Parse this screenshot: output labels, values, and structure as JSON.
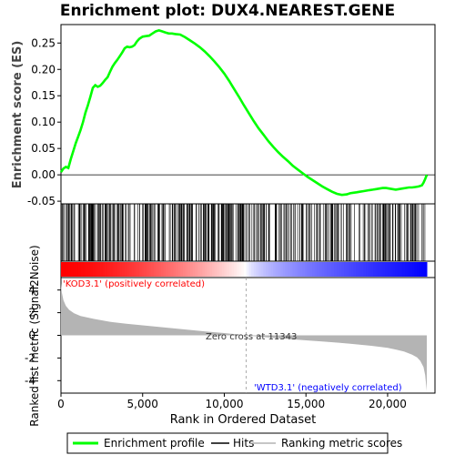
{
  "chart_data": {
    "type": "line",
    "title": "Enrichment plot: DUX4.NEAREST.GENE",
    "panels": {
      "enrichment": {
        "ylabel": "Enrichment score (ES)",
        "ylim": [
          -0.055,
          0.285
        ],
        "yticks": [
          -0.05,
          0.0,
          0.05,
          0.1,
          0.15,
          0.2,
          0.25
        ],
        "ytick_labels": [
          "-0.05",
          "0.00",
          "0.05",
          "0.10",
          "0.15",
          "0.20",
          "0.25"
        ],
        "series": [
          {
            "name": "Enrichment profile",
            "color": "#00ff00",
            "x": [
              0,
              150,
              300,
              450,
              600,
              750,
              900,
              1050,
              1200,
              1350,
              1500,
              1650,
              1800,
              1950,
              2100,
              2250,
              2400,
              2550,
              2700,
              2850,
              3000,
              3150,
              3300,
              3450,
              3600,
              3750,
              3900,
              4050,
              4200,
              4350,
              4500,
              4650,
              4800,
              5000,
              5200,
              5400,
              5600,
              5800,
              6000,
              6200,
              6400,
              6600,
              6800,
              7000,
              7300,
              7600,
              7900,
              8200,
              8500,
              8800,
              9100,
              9400,
              9700,
              10000,
              10300,
              10600,
              10900,
              11200,
              11500,
              11800,
              12100,
              12400,
              12700,
              13000,
              13300,
              13600,
              13900,
              14200,
              14500,
              14800,
              15100,
              15400,
              15700,
              16000,
              16300,
              16600,
              16900,
              17200,
              17500,
              17700,
              17900,
              18100,
              18300,
              18500,
              18700,
              18900,
              19100,
              19300,
              19500,
              19700,
              19900,
              20100,
              20300,
              20500,
              20700,
              20900,
              21100,
              21300,
              21500,
              21700,
              21900,
              22100,
              22200,
              22300,
              22400
            ],
            "y": [
              0.005,
              0.012,
              0.015,
              0.013,
              0.03,
              0.045,
              0.06,
              0.072,
              0.085,
              0.1,
              0.118,
              0.132,
              0.148,
              0.165,
              0.17,
              0.167,
              0.169,
              0.174,
              0.18,
              0.185,
              0.195,
              0.205,
              0.212,
              0.218,
              0.225,
              0.232,
              0.24,
              0.243,
              0.242,
              0.243,
              0.246,
              0.253,
              0.258,
              0.262,
              0.263,
              0.264,
              0.268,
              0.272,
              0.274,
              0.272,
              0.27,
              0.268,
              0.268,
              0.267,
              0.266,
              0.261,
              0.255,
              0.249,
              0.242,
              0.234,
              0.225,
              0.215,
              0.204,
              0.192,
              0.178,
              0.163,
              0.148,
              0.132,
              0.117,
              0.102,
              0.088,
              0.076,
              0.064,
              0.053,
              0.043,
              0.034,
              0.026,
              0.017,
              0.01,
              0.003,
              -0.004,
              -0.01,
              -0.016,
              -0.022,
              -0.027,
              -0.032,
              -0.036,
              -0.038,
              -0.037,
              -0.035,
              -0.034,
              -0.033,
              -0.032,
              -0.031,
              -0.03,
              -0.029,
              -0.028,
              -0.027,
              -0.026,
              -0.025,
              -0.025,
              -0.026,
              -0.027,
              -0.028,
              -0.027,
              -0.026,
              -0.025,
              -0.024,
              -0.024,
              -0.023,
              -0.022,
              -0.02,
              -0.015,
              -0.008,
              0.0
            ]
          }
        ]
      },
      "hits": {
        "series_name": "Hits",
        "color": "#000000",
        "count": 420,
        "range": [
          0,
          22400
        ]
      },
      "colorbar": {
        "pos_color": "#ff0000",
        "neg_color": "#0000ff",
        "mid_color": "#ffffff"
      },
      "ranking": {
        "series_name": "Ranking metric scores",
        "color": "#b4b4b4",
        "ylabel": "Ranked list metric (Signal2Noise)",
        "ylim": [
          -5.1,
          5.1
        ],
        "yticks": [
          -4,
          -2,
          0,
          2,
          4
        ],
        "ytick_labels": [
          "-4",
          "-2",
          "0",
          "2",
          "4"
        ],
        "x": [
          0,
          50,
          150,
          300,
          500,
          800,
          1200,
          2000,
          3000,
          4000,
          5000,
          6000,
          7000,
          8000,
          9000,
          10000,
          11000,
          11343,
          12000,
          13000,
          14000,
          15000,
          16000,
          17000,
          18000,
          19000,
          20000,
          20500,
          21000,
          21500,
          21800,
          22000,
          22200,
          22300,
          22400
        ],
        "y": [
          4.6,
          3.8,
          3.1,
          2.6,
          2.25,
          1.95,
          1.7,
          1.45,
          1.2,
          1.02,
          0.88,
          0.74,
          0.6,
          0.46,
          0.32,
          0.2,
          0.06,
          0.0,
          -0.1,
          -0.22,
          -0.33,
          -0.44,
          -0.55,
          -0.65,
          -0.78,
          -0.92,
          -1.1,
          -1.25,
          -1.42,
          -1.7,
          -1.95,
          -2.25,
          -2.8,
          -3.5,
          -4.9
        ]
      }
    },
    "xaxis": {
      "label": "Rank in Ordered Dataset",
      "xlim": [
        0,
        22900
      ],
      "ticks": [
        0,
        5000,
        10000,
        15000,
        20000
      ],
      "tick_labels": [
        "0",
        "5,000",
        "10,000",
        "15,000",
        "20,000"
      ]
    },
    "annotations": {
      "positive": "'KOD3.1' (positively correlated)",
      "negative": "'WTD3.1' (negatively correlated)",
      "zero_cross": "Zero cross at 11343",
      "zero_cross_x": 11343
    },
    "legend": {
      "position": "bottom",
      "items": [
        {
          "label": "Enrichment profile",
          "color": "#00ff00"
        },
        {
          "label": "Hits",
          "color": "#000000"
        },
        {
          "label": "Ranking metric scores",
          "color": "#b4b4b4"
        }
      ]
    }
  }
}
